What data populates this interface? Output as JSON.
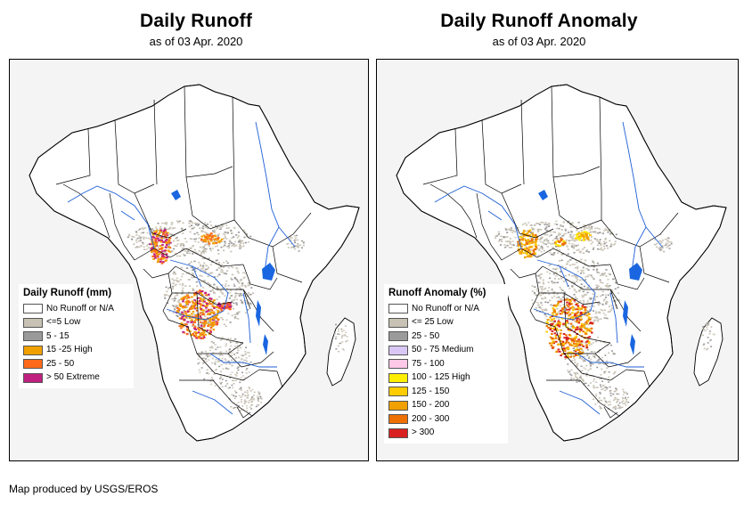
{
  "left_panel": {
    "title": "Daily Runoff",
    "subtitle": "as of 03 Apr. 2020",
    "legend_title": "Daily Runoff (mm)",
    "legend": [
      {
        "label": "No Runoff or N/A",
        "color": "#ffffff"
      },
      {
        "label": "<=5 Low",
        "color": "#c8c2b4"
      },
      {
        "label": "5 - 15",
        "color": "#9a9a9a"
      },
      {
        "label": "15 -25 High",
        "color": "#f0a000"
      },
      {
        "label": "25 - 50",
        "color": "#ff6a1a"
      },
      {
        "label": "> 50 Extreme",
        "color": "#c02080"
      }
    ]
  },
  "right_panel": {
    "title": "Daily Runoff Anomaly",
    "subtitle": "as of 03 Apr. 2020",
    "legend_title": "Runoff Anomaly (%)",
    "legend": [
      {
        "label": "No Runoff or N/A",
        "color": "#ffffff"
      },
      {
        "label": "<= 25 Low",
        "color": "#c8c2b4"
      },
      {
        "label": "25 - 50",
        "color": "#9a9a9a"
      },
      {
        "label": "50 - 75 Medium",
        "color": "#d9c8f5"
      },
      {
        "label": "75 - 100",
        "color": "#ffc8e6"
      },
      {
        "label": "100 - 125 High",
        "color": "#ffee00"
      },
      {
        "label": "125 - 150",
        "color": "#ffcc00"
      },
      {
        "label": "150 - 200",
        "color": "#f0a000"
      },
      {
        "label": "200 - 300",
        "color": "#ee7000"
      },
      {
        "label": "> 300",
        "color": "#d82020"
      }
    ]
  },
  "credit": "Map produced by USGS/EROS",
  "colors": {
    "land": "#ffffff",
    "ocean": "#f4f4f4",
    "border": "#000000",
    "river": "#1f5fd6",
    "lake": "#1a66e0"
  }
}
